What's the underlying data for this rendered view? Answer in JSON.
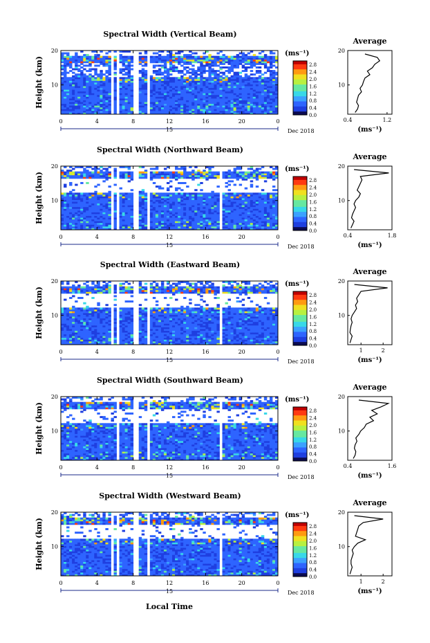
{
  "xlabel": "Local Time",
  "date_label": "Dec 2018",
  "day_label": "15",
  "x_ticks": [
    "0",
    "4",
    "8",
    "12",
    "16",
    "20",
    "0"
  ],
  "y_ticks": [
    "20",
    "10"
  ],
  "ylabel": "Height (km)",
  "unit_label": "(ms⁻¹)",
  "avg_xlabel": "(ms⁻¹)",
  "avg_title": "Average",
  "colorbar_ticks": [
    "2.8",
    "2.4",
    "2.0",
    "1.6",
    "1.2",
    "0.8",
    "0.4",
    "0.0"
  ],
  "colormap": [
    "#0a0a50",
    "#1f3fe0",
    "#2e64ff",
    "#3aa0ff",
    "#38d8e8",
    "#66e8a0",
    "#b8f040",
    "#f0e020",
    "#ff9a10",
    "#ff3a10",
    "#c00000"
  ],
  "chart_data": [
    {
      "type": "heatmap",
      "title": "Spectral Width (Vertical Beam)",
      "xlabel": "",
      "ylabel": "Height (km)",
      "xlim": [
        0,
        24
      ],
      "ylim": [
        1.5,
        20
      ],
      "clim": [
        0.0,
        3.0
      ],
      "gaps_hours": [
        5.7,
        6.3,
        8.3,
        9.6
      ],
      "avg_profile": {
        "title": "Average",
        "xlim": [
          0.4,
          1.3
        ],
        "xticks": [
          "0.4",
          "1.2"
        ],
        "height_km": [
          2,
          3,
          4,
          5,
          6,
          7,
          8,
          9,
          10,
          11,
          12,
          13,
          14,
          15,
          16,
          17,
          18,
          19
        ],
        "value": [
          0.55,
          0.6,
          0.62,
          0.58,
          0.6,
          0.62,
          0.68,
          0.65,
          0.7,
          0.72,
          0.75,
          0.85,
          0.8,
          0.9,
          0.95,
          1.05,
          1.0,
          0.75
        ]
      }
    },
    {
      "type": "heatmap",
      "title": "Spectral Width (Northward Beam)",
      "xlabel": "",
      "ylabel": "Height (km)",
      "xlim": [
        0,
        24
      ],
      "ylim": [
        1.5,
        20
      ],
      "clim": [
        0.0,
        3.0
      ],
      "gaps_hours": [
        5.7,
        6.3,
        8.3,
        9.6,
        17.7
      ],
      "avg_profile": {
        "title": "Average",
        "xlim": [
          0.4,
          1.8
        ],
        "xticks": [
          "0.4",
          "1.8"
        ],
        "height_km": [
          2,
          3,
          4,
          5,
          6,
          7,
          8,
          9,
          10,
          11,
          12,
          13,
          14,
          15,
          16,
          17,
          18,
          19
        ],
        "value": [
          0.5,
          0.55,
          0.6,
          0.52,
          0.55,
          0.6,
          0.65,
          0.6,
          0.65,
          0.75,
          0.8,
          0.7,
          0.75,
          0.8,
          0.85,
          0.8,
          1.7,
          0.6
        ]
      }
    },
    {
      "type": "heatmap",
      "title": "Spectral Width (Eastward Beam)",
      "xlabel": "",
      "ylabel": "Height (km)",
      "xlim": [
        0,
        24
      ],
      "ylim": [
        1.5,
        20
      ],
      "clim": [
        0.0,
        3.0
      ],
      "gaps_hours": [
        5.7,
        6.3,
        8.3,
        9.6,
        17.7
      ],
      "avg_profile": {
        "title": "Average",
        "xlim": [
          0.4,
          2.4
        ],
        "xticks": [
          "1",
          "2"
        ],
        "height_km": [
          2,
          3,
          4,
          5,
          6,
          7,
          8,
          9,
          10,
          11,
          12,
          13,
          14,
          15,
          16,
          17,
          18,
          19
        ],
        "value": [
          0.5,
          0.55,
          0.6,
          0.5,
          0.52,
          0.55,
          0.6,
          0.55,
          0.6,
          0.7,
          0.8,
          0.75,
          0.85,
          0.8,
          0.9,
          1.0,
          2.2,
          0.7
        ]
      }
    },
    {
      "type": "heatmap",
      "title": "Spectral Width (Southward Beam)",
      "xlabel": "",
      "ylabel": "Height (km)",
      "xlim": [
        0,
        24
      ],
      "ylim": [
        1.5,
        20
      ],
      "clim": [
        0.0,
        3.0
      ],
      "gaps_hours": [
        6.3,
        8.3,
        9.6,
        17.7
      ],
      "avg_profile": {
        "title": "Average",
        "xlim": [
          0.4,
          1.6
        ],
        "xticks": [
          "0.4",
          "1.6"
        ],
        "height_km": [
          2,
          3,
          4,
          5,
          6,
          7,
          8,
          9,
          10,
          11,
          12,
          13,
          14,
          15,
          16,
          17,
          18,
          19
        ],
        "value": [
          0.55,
          0.6,
          0.62,
          0.58,
          0.6,
          0.65,
          0.62,
          0.7,
          0.75,
          0.85,
          0.9,
          1.1,
          1.0,
          1.2,
          1.05,
          1.3,
          1.5,
          0.7
        ]
      }
    },
    {
      "type": "heatmap",
      "title": "Spectral Width (Westward Beam)",
      "xlabel": "Local Time",
      "ylabel": "Height (km)",
      "xlim": [
        0,
        24
      ],
      "ylim": [
        1.5,
        20
      ],
      "clim": [
        0.0,
        3.0
      ],
      "gaps_hours": [
        5.7,
        6.3,
        8.3,
        9.6,
        17.7
      ],
      "avg_profile": {
        "title": "Average",
        "xlim": [
          0.4,
          2.4
        ],
        "xticks": [
          "1",
          "2"
        ],
        "height_km": [
          2,
          3,
          4,
          5,
          6,
          7,
          8,
          9,
          10,
          11,
          12,
          13,
          14,
          15,
          16,
          17,
          18,
          19
        ],
        "value": [
          0.5,
          0.55,
          0.6,
          0.55,
          0.55,
          0.6,
          0.65,
          0.6,
          0.7,
          0.85,
          1.2,
          0.75,
          0.8,
          0.85,
          0.9,
          1.1,
          2.0,
          0.7
        ]
      }
    }
  ]
}
